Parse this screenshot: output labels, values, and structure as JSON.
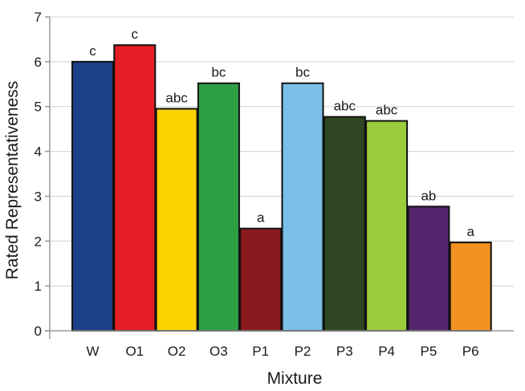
{
  "chart_data": {
    "type": "bar",
    "title": "",
    "xlabel": "Mixture",
    "ylabel": "Rated Representativeness",
    "ylim": [
      0,
      7
    ],
    "yticks": [
      0,
      1,
      2,
      3,
      4,
      5,
      6,
      7
    ],
    "grid": true,
    "legend": "none",
    "categories": [
      "W",
      "O1",
      "O2",
      "O3",
      "P1",
      "P2",
      "P3",
      "P4",
      "P5",
      "P6"
    ],
    "values": [
      6.0,
      6.37,
      4.95,
      5.52,
      2.28,
      5.52,
      4.77,
      4.68,
      2.77,
      1.97
    ],
    "significance_labels": [
      "c",
      "c",
      "abc",
      "bc",
      "a",
      "bc",
      "abc",
      "abc",
      "ab",
      "a"
    ],
    "colors": [
      "#1c3f87",
      "#e61e25",
      "#fcd200",
      "#2e9e45",
      "#8b1a1f",
      "#7bbfe8",
      "#2e4722",
      "#9ccb3b",
      "#55266e",
      "#f39121"
    ]
  }
}
